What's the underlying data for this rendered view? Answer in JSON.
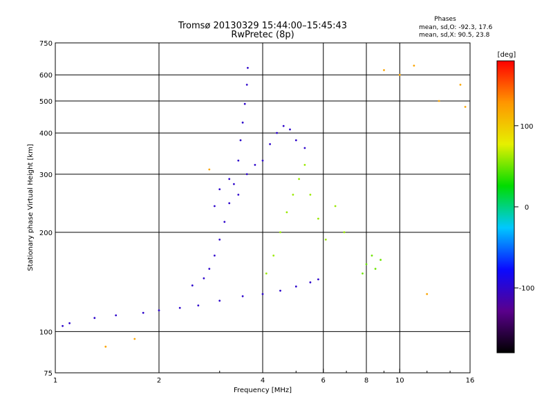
{
  "chart_data": {
    "type": "scatter",
    "title": "Tromsø 20130329 15:44:00–15:45:43",
    "subtitle": "RwPretec (8p)",
    "xlabel": "Frequency [MHz]",
    "ylabel": "Stationary phase Virtual Height [km]",
    "x_scale": "log",
    "y_scale": "log",
    "xlim": [
      1,
      16
    ],
    "ylim": [
      75,
      750
    ],
    "x_ticks": [
      1,
      2,
      4,
      6,
      8,
      10,
      16
    ],
    "x_tick_labels": [
      "1",
      "2",
      "4",
      "6",
      "8",
      "10",
      "16"
    ],
    "y_ticks": [
      75,
      100,
      200,
      300,
      400,
      500,
      600,
      750
    ],
    "y_tick_labels": [
      "75",
      "100",
      "200",
      "300",
      "400",
      "500",
      "600",
      "750"
    ],
    "grid": true,
    "phases_header": "Phases",
    "phases_stats": [
      "mean, sd,O:  -92.3, 17.6",
      "mean, sd,X:  90.5, 23.8"
    ],
    "colorbar": {
      "unit_label": "[deg]",
      "range": [
        -180,
        180
      ],
      "tick_values": [
        100,
        0,
        -100
      ],
      "tick_labels": [
        "100",
        "0",
        "-100"
      ],
      "colors": [
        "#000000",
        "#5a008c",
        "#0a0aff",
        "#00c8ff",
        "#00dc00",
        "#e6f000",
        "#ff9600",
        "#ff0000"
      ]
    },
    "series": [
      {
        "trace": "low-frequency F trace",
        "phase": -100,
        "points": [
          [
            1.05,
            104
          ],
          [
            1.1,
            106
          ],
          [
            1.3,
            110
          ],
          [
            1.5,
            112
          ],
          [
            1.8,
            114
          ],
          [
            2.0,
            116
          ],
          [
            2.3,
            118
          ],
          [
            2.6,
            120
          ],
          [
            3.0,
            124
          ],
          [
            3.5,
            128
          ],
          [
            4.0,
            130
          ],
          [
            4.5,
            133
          ],
          [
            5.0,
            137
          ],
          [
            5.5,
            141
          ],
          [
            5.8,
            144
          ]
        ]
      },
      {
        "trace": "F1 rising branch",
        "phase": -100,
        "points": [
          [
            2.5,
            138
          ],
          [
            2.7,
            145
          ],
          [
            2.8,
            155
          ],
          [
            2.9,
            170
          ],
          [
            3.0,
            190
          ],
          [
            3.1,
            215
          ],
          [
            3.2,
            245
          ],
          [
            3.3,
            280
          ],
          [
            3.4,
            330
          ],
          [
            3.45,
            380
          ],
          [
            3.5,
            430
          ],
          [
            3.55,
            490
          ],
          [
            3.6,
            560
          ],
          [
            3.62,
            630
          ]
        ]
      },
      {
        "trace": "F2 cusp",
        "phase": -100,
        "points": [
          [
            2.9,
            240
          ],
          [
            3.0,
            270
          ],
          [
            3.2,
            290
          ],
          [
            3.4,
            260
          ],
          [
            3.6,
            300
          ],
          [
            3.8,
            320
          ],
          [
            4.0,
            330
          ],
          [
            4.2,
            370
          ],
          [
            4.4,
            400
          ],
          [
            4.6,
            420
          ],
          [
            4.8,
            410
          ],
          [
            5.0,
            380
          ],
          [
            5.3,
            360
          ]
        ]
      },
      {
        "trace": "oblique-scatter cloud",
        "phase": 60,
        "points": [
          [
            4.1,
            150
          ],
          [
            4.3,
            170
          ],
          [
            4.5,
            200
          ],
          [
            4.7,
            230
          ],
          [
            4.9,
            260
          ],
          [
            5.1,
            290
          ],
          [
            5.3,
            320
          ],
          [
            5.5,
            260
          ],
          [
            5.8,
            220
          ],
          [
            6.1,
            190
          ],
          [
            6.5,
            240
          ],
          [
            6.9,
            200
          ]
        ]
      },
      {
        "trace": "8 MHz cluster",
        "phase": 50,
        "points": [
          [
            7.8,
            150
          ],
          [
            8.0,
            160
          ],
          [
            8.3,
            170
          ],
          [
            8.5,
            155
          ],
          [
            8.8,
            165
          ]
        ]
      },
      {
        "trace": "scattered noise",
        "phase": 120,
        "points": [
          [
            1.4,
            90
          ],
          [
            1.7,
            95
          ],
          [
            2.8,
            310
          ],
          [
            9.0,
            620
          ],
          [
            10.0,
            600
          ],
          [
            11.0,
            640
          ],
          [
            13.0,
            500
          ],
          [
            15.0,
            560
          ],
          [
            15.5,
            480
          ],
          [
            12.0,
            130
          ]
        ]
      }
    ]
  }
}
